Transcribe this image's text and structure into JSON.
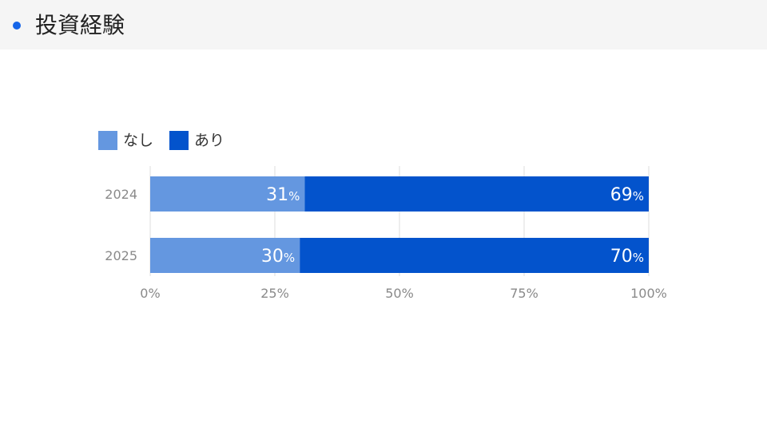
{
  "header": {
    "title": "投資経験",
    "dot_color": "#1565e8"
  },
  "chart_data": {
    "type": "bar",
    "orientation": "horizontal",
    "stacked": true,
    "categories": [
      "2024",
      "2025"
    ],
    "series": [
      {
        "name": "なし",
        "color": "#6497e0",
        "values": [
          31,
          30
        ]
      },
      {
        "name": "あり",
        "color": "#0353cc",
        "values": [
          69,
          70
        ]
      }
    ],
    "value_suffix": "%",
    "xlim": [
      0,
      100
    ],
    "xticks": [
      0,
      25,
      50,
      75,
      100
    ],
    "xtick_labels": [
      "0%",
      "25%",
      "50%",
      "75%",
      "100%"
    ],
    "grid": true,
    "legend_position": "top-left"
  }
}
